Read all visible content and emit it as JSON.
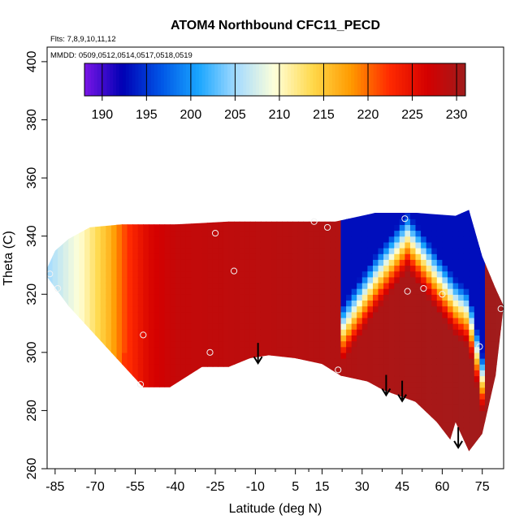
{
  "chart_data": {
    "type": "heatmap",
    "title": "ATOM4 Northbound CFC11_PECD",
    "flights_label": "Flts: 7,8,9,10,11,12",
    "dates_label": "MMDD: 0509,0512,0514,0517,0518,0519",
    "xlabel": "Latitude (deg N)",
    "ylabel": "Theta (C)",
    "xlim": [
      -88,
      83
    ],
    "ylim": [
      260,
      405
    ],
    "x_ticks": [
      -85,
      -70,
      -55,
      -40,
      -25,
      -10,
      5,
      15,
      30,
      45,
      60,
      75
    ],
    "y_ticks": [
      260,
      280,
      300,
      320,
      340,
      360,
      380,
      400
    ],
    "colorbar": {
      "min": 188,
      "max": 231,
      "ticks": [
        190,
        195,
        200,
        205,
        210,
        215,
        220,
        225,
        230
      ],
      "colors": [
        "#7a16e6",
        "#0000b4",
        "#0055e6",
        "#1aa6ff",
        "#a6dcff",
        "#ffffd8",
        "#ffd84a",
        "#ff9a00",
        "#ff2a00",
        "#d40000",
        "#a01c1c"
      ]
    },
    "field": {
      "top_boundary": [
        [
          -88,
          329
        ],
        [
          -85,
          335
        ],
        [
          -80,
          339
        ],
        [
          -72,
          343
        ],
        [
          -60,
          344
        ],
        [
          -40,
          344
        ],
        [
          -20,
          345
        ],
        [
          0,
          345
        ],
        [
          20,
          345
        ],
        [
          35,
          348
        ],
        [
          50,
          348
        ],
        [
          65,
          347
        ],
        [
          70,
          349
        ],
        [
          75,
          333
        ],
        [
          80,
          322
        ],
        [
          83,
          316
        ]
      ],
      "bottom_boundary": [
        [
          -88,
          326
        ],
        [
          -80,
          316
        ],
        [
          -70,
          306
        ],
        [
          -60,
          296
        ],
        [
          -52,
          288
        ],
        [
          -42,
          288
        ],
        [
          -30,
          295
        ],
        [
          -20,
          295
        ],
        [
          -12,
          298
        ],
        [
          -5,
          299
        ],
        [
          5,
          298
        ],
        [
          15,
          296
        ],
        [
          22,
          292
        ],
        [
          32,
          290
        ],
        [
          38,
          287
        ],
        [
          44,
          285
        ],
        [
          50,
          283
        ],
        [
          58,
          276
        ],
        [
          63,
          270
        ],
        [
          65,
          276
        ],
        [
          70,
          266
        ],
        [
          75,
          272
        ],
        [
          80,
          292
        ],
        [
          83,
          316
        ]
      ],
      "warm_front": [
        [
          -88,
          205
        ],
        [
          -75,
          210
        ],
        [
          -65,
          216
        ],
        [
          -58,
          222
        ],
        [
          -50,
          226
        ],
        [
          -40,
          228
        ],
        [
          0,
          229
        ],
        [
          40,
          230
        ],
        [
          83,
          231
        ]
      ],
      "cold_core": {
        "center_lat": 47,
        "center_theta": 346,
        "value": 193
      }
    },
    "sample_points": [
      {
        "lat": -87,
        "theta": 327
      },
      {
        "lat": -84,
        "theta": 322
      },
      {
        "lat": -52,
        "theta": 306
      },
      {
        "lat": -53,
        "theta": 289
      },
      {
        "lat": -27,
        "theta": 300
      },
      {
        "lat": -25,
        "theta": 341
      },
      {
        "lat": -18,
        "theta": 328
      },
      {
        "lat": 12,
        "theta": 345
      },
      {
        "lat": 17,
        "theta": 343
      },
      {
        "lat": 21,
        "theta": 294
      },
      {
        "lat": 46,
        "theta": 346
      },
      {
        "lat": 47,
        "theta": 321
      },
      {
        "lat": 53,
        "theta": 322
      },
      {
        "lat": 60,
        "theta": 320
      },
      {
        "lat": 74,
        "theta": 302
      },
      {
        "lat": 82,
        "theta": 315
      }
    ],
    "arrows": [
      {
        "lat": -9,
        "theta": 296
      },
      {
        "lat": 39,
        "theta": 285
      },
      {
        "lat": 45,
        "theta": 283
      },
      {
        "lat": 66,
        "theta": 267
      }
    ]
  }
}
